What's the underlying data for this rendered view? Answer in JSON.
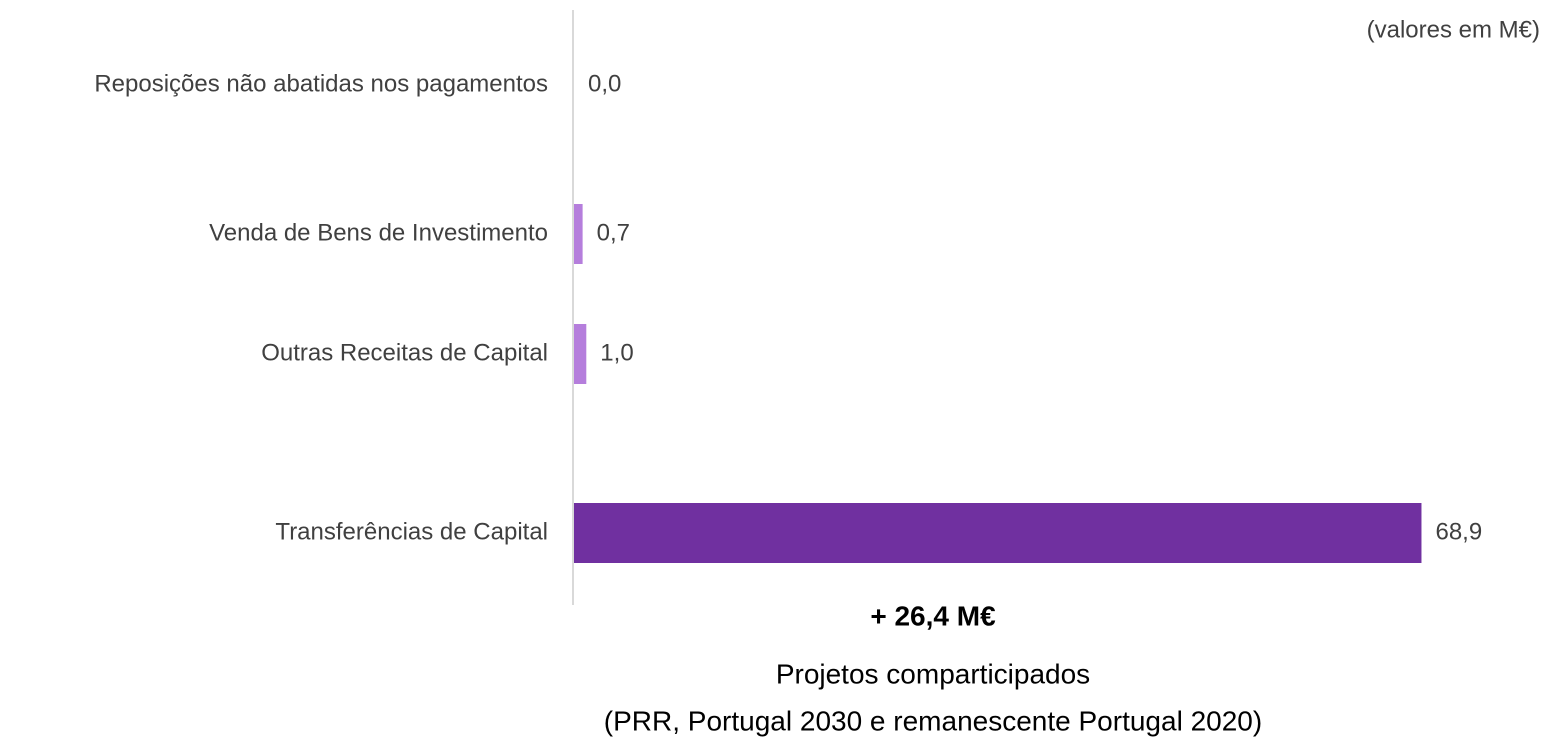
{
  "chart_data": {
    "type": "barh",
    "note": "(valores em M€)",
    "categories": [
      "Reposições não abatidas nos pagamentos",
      "Venda de Bens de Investimento",
      "Outras Receitas de Capital",
      "Transferências de Capital"
    ],
    "values": [
      0.0,
      0.7,
      1.0,
      68.9
    ],
    "value_labels": [
      "0,0",
      "0,7",
      "1,0",
      "68,9"
    ],
    "colors": [
      "#b57edc",
      "#b57edc",
      "#b57edc",
      "#7030a0"
    ],
    "xlim": [
      0,
      70
    ],
    "annotations": [
      "+ 26,4 M€",
      "Projetos comparticipados",
      "(PRR, Portugal 2030 e remanescente Portugal 2020)"
    ]
  }
}
